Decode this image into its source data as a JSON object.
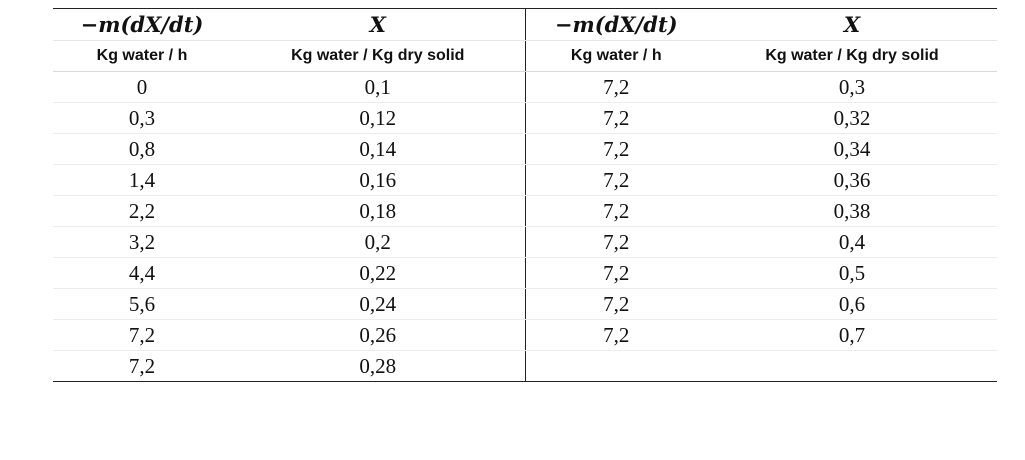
{
  "table": {
    "left_block": {
      "header_math": [
        "−m(dX/dt)",
        "X"
      ],
      "header_units": [
        "Kg water / h",
        "Kg water / Kg dry solid"
      ],
      "rows": [
        [
          "0",
          "0,1"
        ],
        [
          "0,3",
          "0,12"
        ],
        [
          "0,8",
          "0,14"
        ],
        [
          "1,4",
          "0,16"
        ],
        [
          "2,2",
          "0,18"
        ],
        [
          "3,2",
          "0,2"
        ],
        [
          "4,4",
          "0,22"
        ],
        [
          "5,6",
          "0,24"
        ],
        [
          "7,2",
          "0,26"
        ],
        [
          "7,2",
          "0,28"
        ]
      ]
    },
    "right_block": {
      "header_math": [
        "−m(dX/dt)",
        "X"
      ],
      "header_units": [
        "Kg water / h",
        "Kg water / Kg dry solid"
      ],
      "rows": [
        [
          "7,2",
          "0,3"
        ],
        [
          "7,2",
          "0,32"
        ],
        [
          "7,2",
          "0,34"
        ],
        [
          "7,2",
          "0,36"
        ],
        [
          "7,2",
          "0,38"
        ],
        [
          "7,2",
          "0,4"
        ],
        [
          "7,2",
          "0,5"
        ],
        [
          "7,2",
          "0,6"
        ],
        [
          "7,2",
          "0,7"
        ],
        [
          "",
          ""
        ]
      ]
    }
  }
}
